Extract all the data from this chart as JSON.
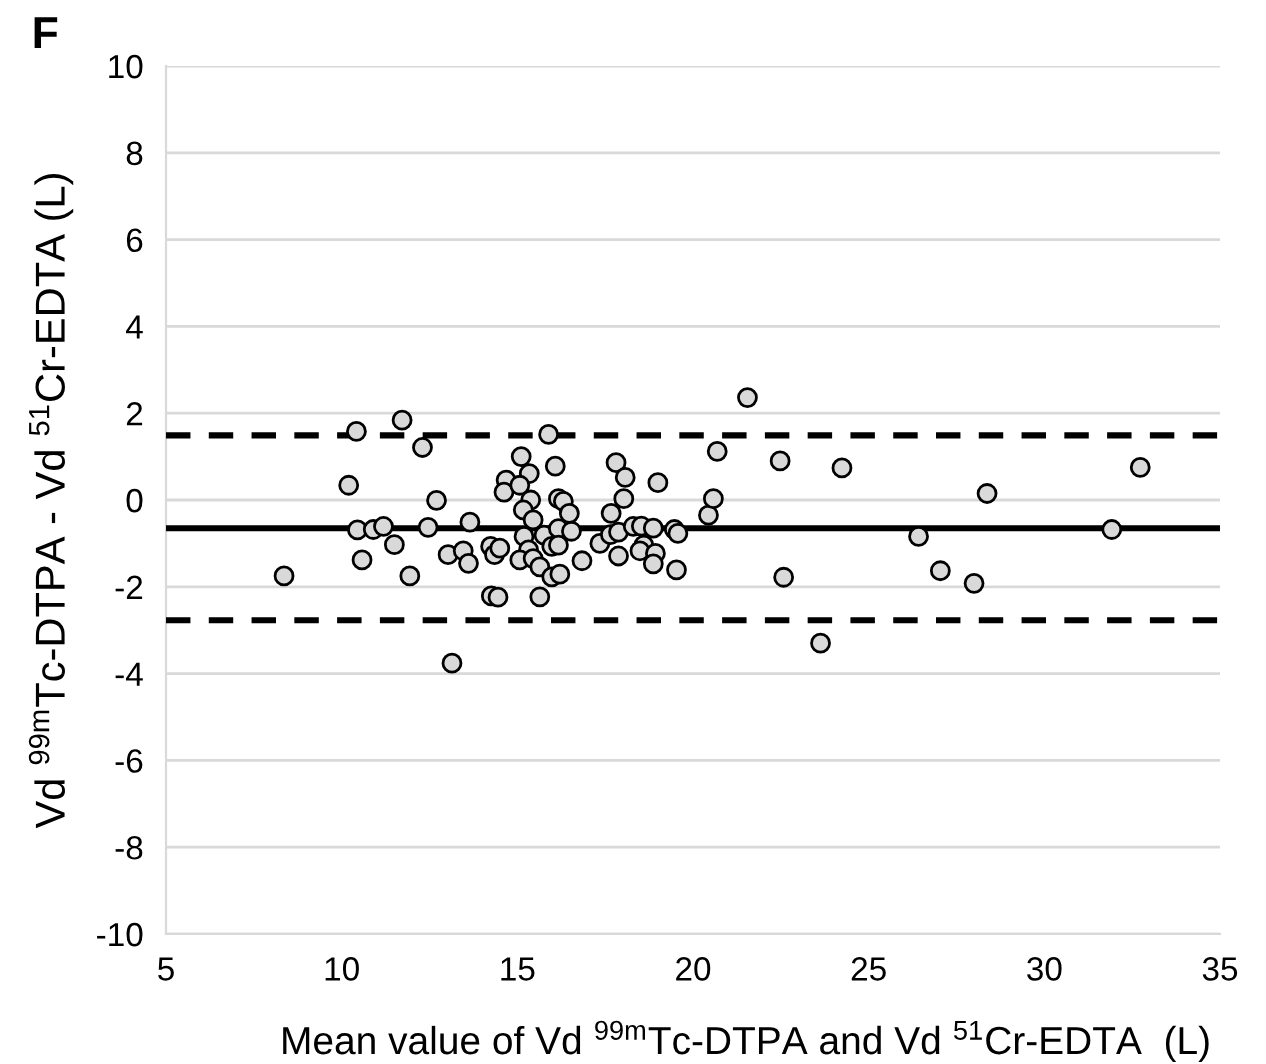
{
  "chart_data": {
    "type": "scatter",
    "xlabel": "Mean value of Vd $^{99m}$Tc-DTPA and Vd $^{51}$Cr-EDTA  (L)",
    "ylabel": "Vd $^{99m}$Tc-DTPA - Vd $^{51}$Cr-EDTA (L)",
    "annotations": [
      "F"
    ],
    "x": [
      8.36,
      10.42,
      11.72,
      12.3,
      10.2,
      12.7,
      10.45,
      10.9,
      11.19,
      10.58,
      11.5,
      11.94,
      12.46,
      13.03,
      13.46,
      13.61,
      13.65,
      13.14,
      14.24,
      14.35,
      14.5,
      14.26,
      14.45,
      14.68,
      14.62,
      15.11,
      15.34,
      15.07,
      15.38,
      15.17,
      15.45,
      15.19,
      15.32,
      15.07,
      15.45,
      15.64,
      15.76,
      15.98,
      15.64,
      15.89,
      16.08,
      16.17,
      16.31,
      16.48,
      16.17,
      16.54,
      15.98,
      16.17,
      16.21,
      16.84,
      17.35,
      17.65,
      17.88,
      17.67,
      17.81,
      18.07,
      18.03,
      17.88,
      18.3,
      18.53,
      18.6,
      18.49,
      18.87,
      18.93,
      18.87,
      19.0,
      19.47,
      19.57,
      19.53,
      20.44,
      20.58,
      20.69,
      21.55,
      22.48,
      22.58,
      23.63,
      24.24,
      26.42,
      27.04,
      28.0,
      28.37,
      31.92,
      32.73
    ],
    "values": [
      -1.75,
      1.58,
      1.84,
      1.21,
      0.34,
      -0.01,
      -0.69,
      -0.68,
      -0.61,
      -1.38,
      -1.03,
      -1.75,
      -0.63,
      -1.26,
      -1.17,
      -1.46,
      -0.51,
      -3.76,
      -1.07,
      -1.26,
      -1.11,
      -2.21,
      -2.24,
      0.46,
      0.18,
      1.0,
      0.61,
      0.34,
      0.0,
      -0.23,
      -0.46,
      -0.84,
      -1.15,
      -1.38,
      -1.35,
      -1.54,
      -0.81,
      -1.77,
      -2.23,
      1.51,
      0.78,
      0.03,
      -0.03,
      -0.31,
      -0.66,
      -0.72,
      -1.07,
      -1.04,
      -1.71,
      -1.4,
      -1.0,
      -0.8,
      -0.74,
      -0.31,
      0.86,
      0.52,
      0.03,
      -1.29,
      -0.61,
      -0.6,
      -1.04,
      -1.17,
      -0.65,
      -1.23,
      -1.47,
      0.4,
      -0.68,
      -0.77,
      -1.61,
      -0.35,
      0.03,
      1.12,
      2.36,
      0.9,
      -1.78,
      -3.3,
      0.74,
      -0.84,
      -1.63,
      -1.92,
      0.15,
      -0.68,
      0.75
    ],
    "color": "#d9d9d9",
    "marker": "circle",
    "xlim": [
      5,
      35
    ],
    "xticks": [
      5,
      10,
      15,
      20,
      25,
      30,
      35
    ],
    "ylim": [
      -10,
      10
    ],
    "yticks": [
      -10,
      -8,
      -6,
      -4,
      -2,
      0,
      2,
      4,
      6,
      8,
      10
    ],
    "grid": "y",
    "ref_lines": [
      {
        "axis": "y",
        "value": -0.65,
        "color": "#000000",
        "line_style": "solid"
      },
      {
        "axis": "y",
        "value": 1.49,
        "color": "#000000",
        "line_style": "dashed"
      },
      {
        "axis": "y",
        "value": -2.77,
        "color": "#000000",
        "line_style": "dashed"
      }
    ]
  }
}
